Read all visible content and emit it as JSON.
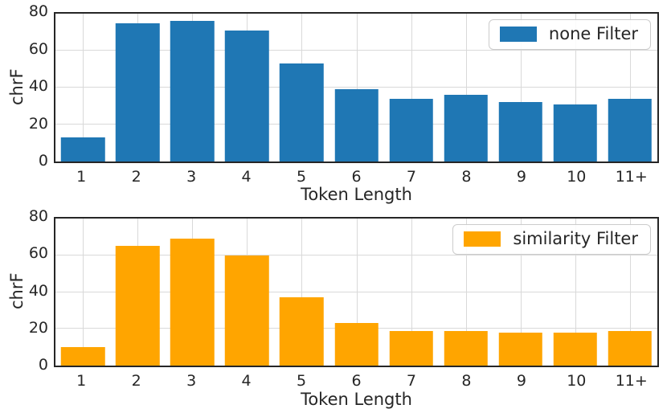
{
  "chart_data": [
    {
      "type": "bar",
      "categories": [
        "1",
        "2",
        "3",
        "4",
        "5",
        "6",
        "7",
        "8",
        "9",
        "10",
        "11+"
      ],
      "values": [
        13,
        75,
        76,
        71,
        53,
        39,
        34,
        36,
        32,
        31,
        34
      ],
      "series_name": "none Filter",
      "bar_color": "#1f77b4",
      "xlabel": "Token Length",
      "ylabel": "chrF",
      "ylim": [
        0,
        80
      ],
      "yticks": [
        0,
        20,
        40,
        60,
        80
      ],
      "grid": true,
      "legend_position": "upper right",
      "bar_width_fraction": 0.8
    },
    {
      "type": "bar",
      "categories": [
        "1",
        "2",
        "3",
        "4",
        "5",
        "6",
        "7",
        "8",
        "9",
        "10",
        "11+"
      ],
      "values": [
        10,
        65,
        69,
        60,
        37,
        23,
        19,
        19,
        18,
        18,
        19
      ],
      "series_name": "similarity Filter",
      "bar_color": "#ffa500",
      "xlabel": "Token Length",
      "ylabel": "chrF",
      "ylim": [
        0,
        80
      ],
      "yticks": [
        0,
        20,
        40,
        60,
        80
      ],
      "grid": true,
      "legend_position": "upper right",
      "bar_width_fraction": 0.8
    }
  ],
  "style": {
    "grid_color": "#d9d9d9",
    "spine_color": "#262626",
    "text_color": "#262626",
    "background_color": "#ffffff",
    "legend_border_color": "#cccccc"
  }
}
